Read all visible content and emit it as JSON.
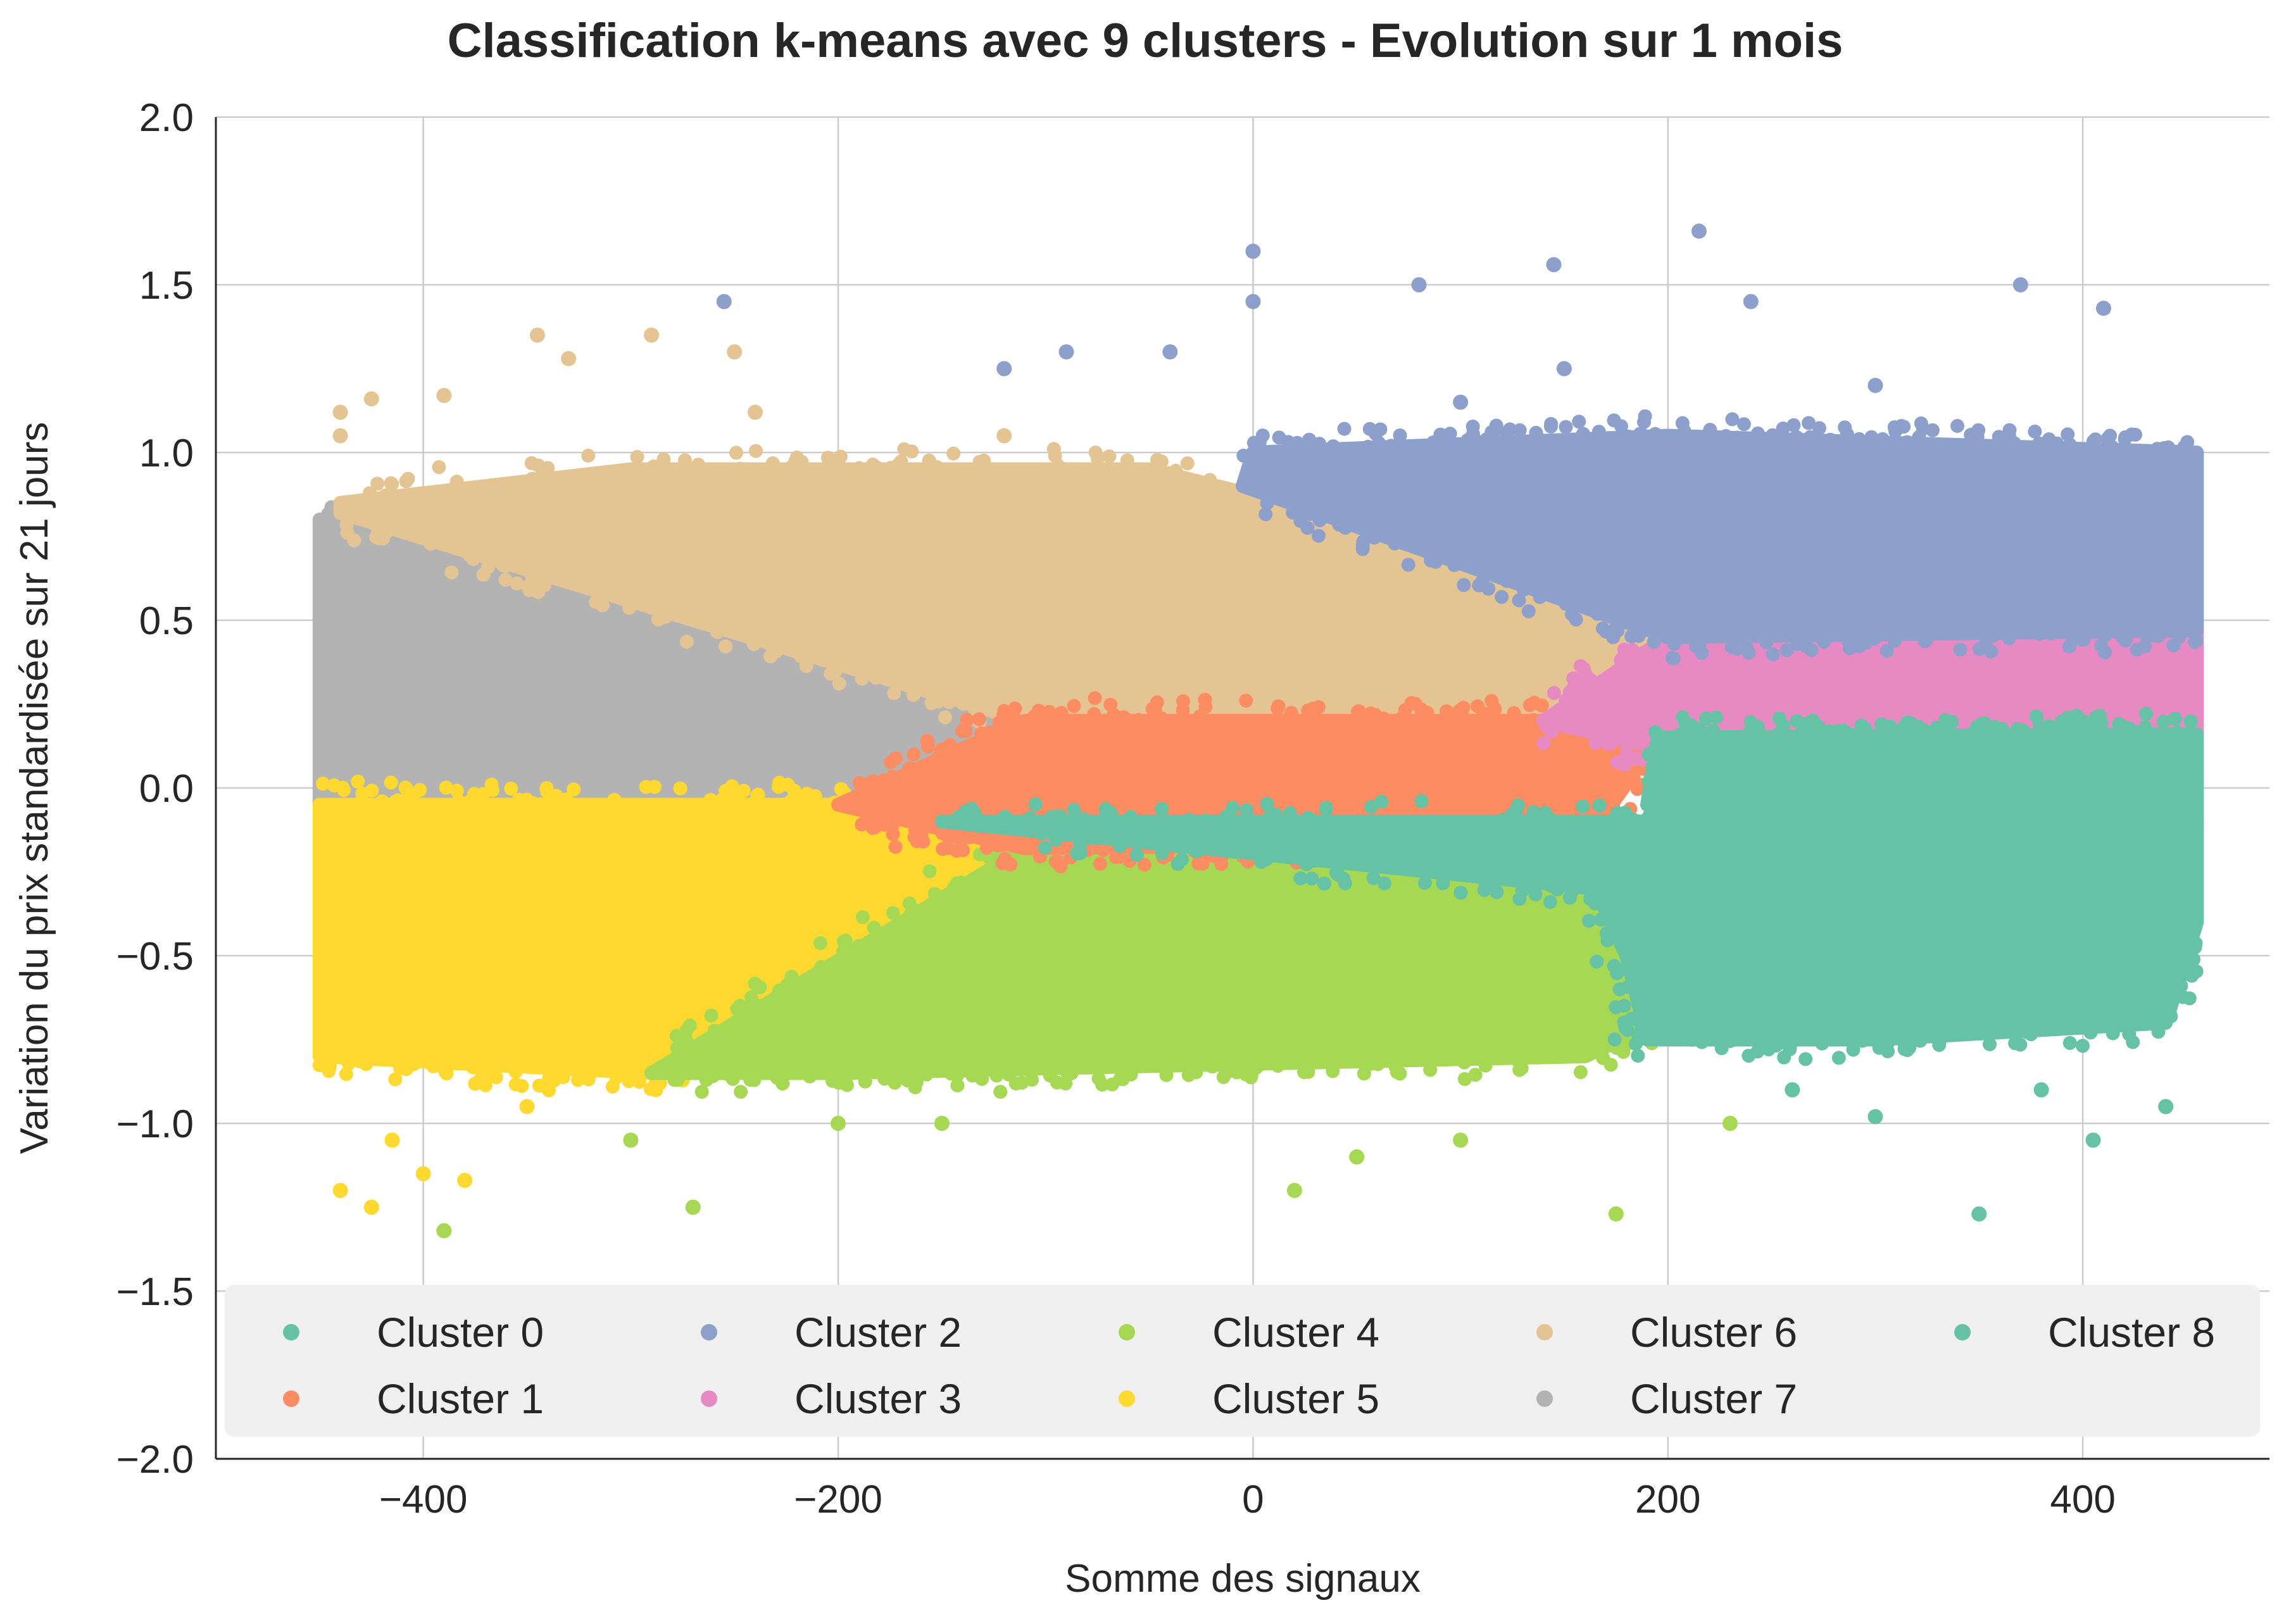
{
  "chart_data": {
    "type": "scatter",
    "title": "Classification k-means avec 9 clusters - Evolution sur 1 mois",
    "xlabel": "Somme des signaux",
    "ylabel": "Variation du prix standardisée sur 21 jours",
    "xlim": [
      -500,
      490
    ],
    "ylim": [
      -2.0,
      2.0
    ],
    "x_ticks": [
      -400,
      -200,
      0,
      200,
      400
    ],
    "x_tick_labels": [
      "−400",
      "−200",
      "0",
      "200",
      "400"
    ],
    "y_ticks": [
      -2.0,
      -1.5,
      -1.0,
      -0.5,
      0.0,
      0.5,
      1.0,
      1.5,
      2.0
    ],
    "y_tick_labels": [
      "−2.0",
      "−1.5",
      "−1.0",
      "−0.5",
      "0.0",
      "0.5",
      "1.0",
      "1.5",
      "2.0"
    ],
    "grid": true,
    "legend_placement": "bottom",
    "series": [
      {
        "name": "Cluster 0",
        "color": "#66c2a5",
        "region": [
          [
            -150,
            -0.1
          ],
          [
            210,
            -0.1
          ],
          [
            455,
            -0.1
          ],
          [
            455,
            -0.4
          ],
          [
            440,
            -0.7
          ],
          [
            300,
            -0.75
          ],
          [
            190,
            -0.75
          ],
          [
            180,
            -0.5
          ],
          [
            165,
            -0.3
          ]
        ],
        "outliers": [
          [
            300,
            -0.98
          ],
          [
            350,
            -1.27
          ],
          [
            405,
            -1.05
          ],
          [
            440,
            -0.95
          ],
          [
            260,
            -0.9
          ],
          [
            380,
            -0.9
          ]
        ]
      },
      {
        "name": "Cluster 1",
        "color": "#fc8d62",
        "region": [
          [
            -200,
            -0.05
          ],
          [
            -110,
            0.2
          ],
          [
            140,
            0.2
          ],
          [
            190,
            0.1
          ],
          [
            160,
            -0.16
          ],
          [
            -110,
            -0.18
          ]
        ],
        "outliers": []
      },
      {
        "name": "Cluster 2",
        "color": "#8da0cb",
        "region": [
          [
            -5,
            0.9
          ],
          [
            200,
            0.45
          ],
          [
            455,
            0.47
          ],
          [
            455,
            1.0
          ],
          [
            200,
            1.05
          ],
          [
            0,
            1.0
          ]
        ],
        "outliers": [
          [
            0,
            1.6
          ],
          [
            0,
            1.45
          ],
          [
            215,
            1.66
          ],
          [
            145,
            1.56
          ],
          [
            80,
            1.5
          ],
          [
            -255,
            1.45
          ],
          [
            -90,
            1.3
          ],
          [
            370,
            1.5
          ],
          [
            410,
            1.43
          ],
          [
            240,
            1.45
          ],
          [
            300,
            1.2
          ],
          [
            150,
            1.25
          ],
          [
            -120,
            1.25
          ],
          [
            -40,
            1.3
          ],
          [
            100,
            1.15
          ]
        ]
      },
      {
        "name": "Cluster 3",
        "color": "#e78ac3",
        "region": [
          [
            200,
            0.45
          ],
          [
            455,
            0.47
          ],
          [
            455,
            0.15
          ],
          [
            195,
            0.12
          ],
          [
            140,
            0.2
          ]
        ],
        "outliers": []
      },
      {
        "name": "Cluster 4",
        "color": "#a6d854",
        "region": [
          [
            -110,
            -0.18
          ],
          [
            165,
            -0.16
          ],
          [
            195,
            -0.7
          ],
          [
            160,
            -0.8
          ],
          [
            -200,
            -0.85
          ],
          [
            -290,
            -0.85
          ]
        ],
        "outliers": [
          [
            -390,
            -1.32
          ],
          [
            -270,
            -1.25
          ],
          [
            20,
            -1.2
          ],
          [
            175,
            -1.27
          ],
          [
            -200,
            -1.0
          ],
          [
            100,
            -1.05
          ],
          [
            -150,
            -1.0
          ],
          [
            230,
            -1.0
          ],
          [
            -300,
            -1.05
          ],
          [
            50,
            -1.1
          ]
        ]
      },
      {
        "name": "Cluster 5",
        "color": "#ffd92f",
        "region": [
          [
            -450,
            -0.05
          ],
          [
            -200,
            -0.05
          ],
          [
            -110,
            -0.18
          ],
          [
            -290,
            -0.85
          ],
          [
            -450,
            -0.8
          ]
        ],
        "outliers": [
          [
            -440,
            -1.2
          ],
          [
            -425,
            -1.25
          ],
          [
            -400,
            -1.15
          ],
          [
            -380,
            -1.17
          ],
          [
            -350,
            -0.95
          ],
          [
            -415,
            -1.05
          ]
        ]
      },
      {
        "name": "Cluster 6",
        "color": "#e5c494",
        "region": [
          [
            -440,
            0.85
          ],
          [
            -300,
            0.95
          ],
          [
            -50,
            0.95
          ],
          [
            100,
            0.72
          ],
          [
            205,
            0.45
          ],
          [
            140,
            0.2
          ],
          [
            -110,
            0.2
          ],
          [
            -440,
            0.82
          ]
        ],
        "outliers": [
          [
            -345,
            1.35
          ],
          [
            -290,
            1.35
          ],
          [
            -250,
            1.3
          ],
          [
            -330,
            1.28
          ],
          [
            -440,
            1.12
          ],
          [
            -425,
            1.16
          ],
          [
            -390,
            1.17
          ],
          [
            -240,
            1.12
          ],
          [
            -120,
            1.05
          ],
          [
            -440,
            1.05
          ]
        ]
      },
      {
        "name": "Cluster 7",
        "color": "#b3b3b3",
        "region": [
          [
            -450,
            0.8
          ],
          [
            -400,
            0.78
          ],
          [
            -250,
            0.52
          ],
          [
            -110,
            0.2
          ],
          [
            -200,
            -0.05
          ],
          [
            -450,
            -0.05
          ]
        ],
        "outliers": []
      },
      {
        "name": "Cluster 8",
        "color": "#66c2a5",
        "region": [
          [
            195,
            0.15
          ],
          [
            455,
            0.16
          ],
          [
            455,
            -0.1
          ],
          [
            210,
            -0.1
          ],
          [
            190,
            -0.05
          ]
        ],
        "outliers": []
      }
    ]
  }
}
